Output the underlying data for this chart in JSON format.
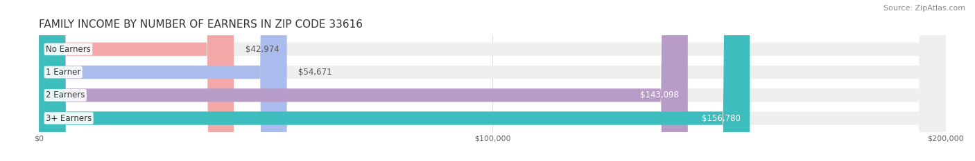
{
  "title": "FAMILY INCOME BY NUMBER OF EARNERS IN ZIP CODE 33616",
  "source": "Source: ZipAtlas.com",
  "categories": [
    "No Earners",
    "1 Earner",
    "2 Earners",
    "3+ Earners"
  ],
  "values": [
    42974,
    54671,
    143098,
    156780
  ],
  "value_labels": [
    "$42,974",
    "$54,671",
    "$143,098",
    "$156,780"
  ],
  "bar_colors": [
    "#f4a8a8",
    "#aabbee",
    "#b89cc8",
    "#3dbdbd"
  ],
  "track_bg_color": "#efefef",
  "xlim": [
    0,
    200000
  ],
  "xticks": [
    0,
    100000,
    200000
  ],
  "xtick_labels": [
    "$0",
    "$100,000",
    "$200,000"
  ],
  "title_fontsize": 11,
  "source_fontsize": 8,
  "label_fontsize": 8.5,
  "value_fontsize": 8.5,
  "background_color": "#ffffff"
}
